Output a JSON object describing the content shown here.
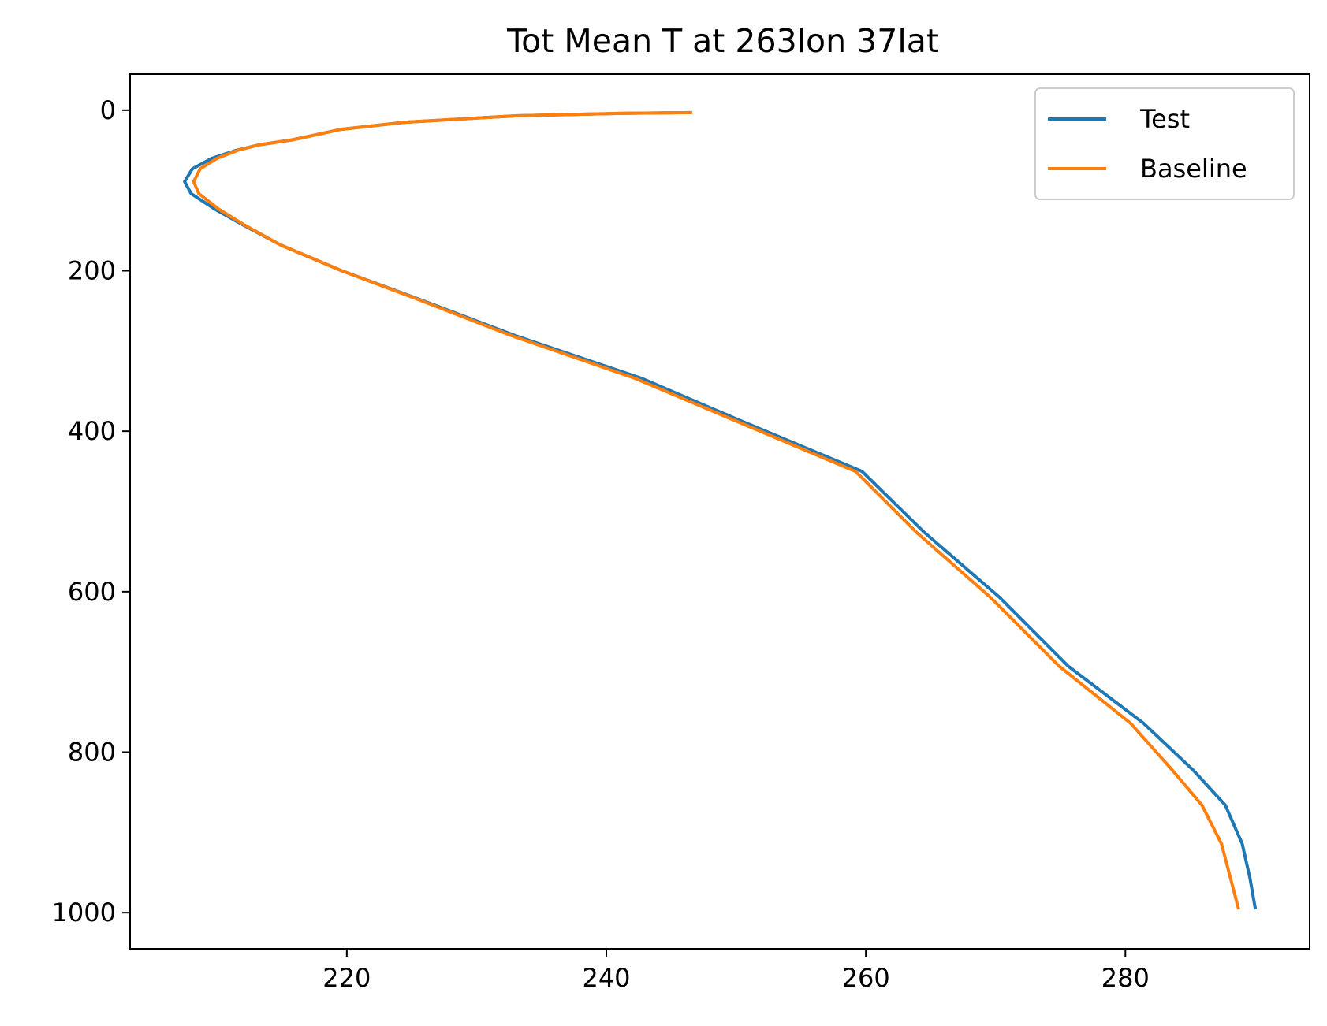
{
  "chart_data": {
    "type": "line",
    "title": "Tot Mean T at 263lon 37lat",
    "xlabel": "",
    "ylabel": "",
    "xlim": [
      203.3,
      294.2
    ],
    "ylim": [
      1045,
      -45
    ],
    "y_inverted": true,
    "grid": false,
    "legend_position": "top-right",
    "x_ticks": [
      220,
      240,
      260,
      280
    ],
    "x_tick_labels": [
      "220",
      "240",
      "260",
      "280"
    ],
    "y_ticks": [
      0,
      200,
      400,
      600,
      800,
      1000
    ],
    "y_tick_labels": [
      "0",
      "200",
      "400",
      "600",
      "800",
      "1000"
    ],
    "series": [
      {
        "name": "Test",
        "color": "#1f77b4",
        "points": [
          [
            246.4,
            3
          ],
          [
            241.0,
            4
          ],
          [
            233.0,
            7
          ],
          [
            224.5,
            15
          ],
          [
            219.5,
            24
          ],
          [
            215.8,
            37
          ],
          [
            213.3,
            43
          ],
          [
            211.5,
            50
          ],
          [
            209.6,
            60
          ],
          [
            208.1,
            73
          ],
          [
            207.5,
            89
          ],
          [
            208.0,
            104
          ],
          [
            209.8,
            123
          ],
          [
            212.0,
            143
          ],
          [
            214.9,
            168
          ],
          [
            219.6,
            200
          ],
          [
            225.3,
            234
          ],
          [
            233.0,
            281
          ],
          [
            242.7,
            334
          ],
          [
            250.2,
            386
          ],
          [
            259.7,
            450
          ],
          [
            264.5,
            526
          ],
          [
            270.3,
            607
          ],
          [
            275.6,
            693
          ],
          [
            281.4,
            764
          ],
          [
            285.2,
            822
          ],
          [
            287.7,
            866
          ],
          [
            289.0,
            914
          ],
          [
            289.6,
            957
          ],
          [
            290.0,
            994
          ]
        ]
      },
      {
        "name": "Baseline",
        "color": "#ff7f0e",
        "points": [
          [
            246.5,
            3
          ],
          [
            241.0,
            4
          ],
          [
            233.0,
            7
          ],
          [
            224.5,
            15
          ],
          [
            219.5,
            24
          ],
          [
            215.8,
            37
          ],
          [
            213.3,
            43
          ],
          [
            211.6,
            50
          ],
          [
            210.0,
            60
          ],
          [
            208.7,
            73
          ],
          [
            208.2,
            89
          ],
          [
            208.6,
            104
          ],
          [
            210.1,
            123
          ],
          [
            212.1,
            143
          ],
          [
            214.9,
            168
          ],
          [
            219.6,
            200
          ],
          [
            225.2,
            234
          ],
          [
            232.7,
            281
          ],
          [
            242.2,
            334
          ],
          [
            249.8,
            386
          ],
          [
            259.2,
            450
          ],
          [
            263.9,
            526
          ],
          [
            269.6,
            607
          ],
          [
            274.9,
            693
          ],
          [
            280.4,
            764
          ],
          [
            283.6,
            822
          ],
          [
            285.9,
            866
          ],
          [
            287.4,
            914
          ],
          [
            288.1,
            957
          ],
          [
            288.7,
            994
          ]
        ]
      }
    ]
  }
}
